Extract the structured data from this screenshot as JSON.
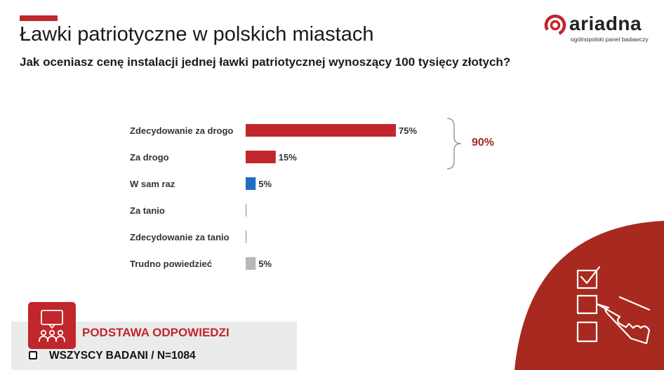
{
  "header": {
    "title": "Ławki patriotyczne w polskich miastach",
    "subtitle": "Jak oceniasz cenę instalacji jednej ławki patriotycznej wynoszący 100 tysięcy złotych?"
  },
  "logo": {
    "wordmark": "ariadna",
    "tagline": "ogólnopolski panel badawczy"
  },
  "colors": {
    "accent": "#c0262b",
    "dark_red": "#a22a23",
    "blue": "#1f6fc1",
    "gray": "#b8b8b8"
  },
  "chart_data": {
    "type": "bar",
    "orientation": "horizontal",
    "categories": [
      "Zdecydowanie za drogo",
      "Za drogo",
      "W sam raz",
      "Za tanio",
      "Zdecydowanie za tanio",
      "Trudno powiedzieć"
    ],
    "values": [
      75,
      15,
      5,
      0,
      0,
      5
    ],
    "value_labels": [
      "75%",
      "15%",
      "5%",
      "",
      "",
      "5%"
    ],
    "bar_colors": [
      "#c0262b",
      "#c0262b",
      "#1f6fc1",
      "#999999",
      "#999999",
      "#b8b8b8"
    ],
    "group_total": {
      "label": "90%",
      "categories": [
        "Zdecydowanie za drogo",
        "Za drogo"
      ]
    },
    "xlim": [
      0,
      75
    ],
    "grid": false,
    "legend": "none"
  },
  "footer": {
    "base_title": "PODSTAWA ODPOWIEDZI",
    "base_note": "WSZYSCY BADANI / N=1084"
  }
}
